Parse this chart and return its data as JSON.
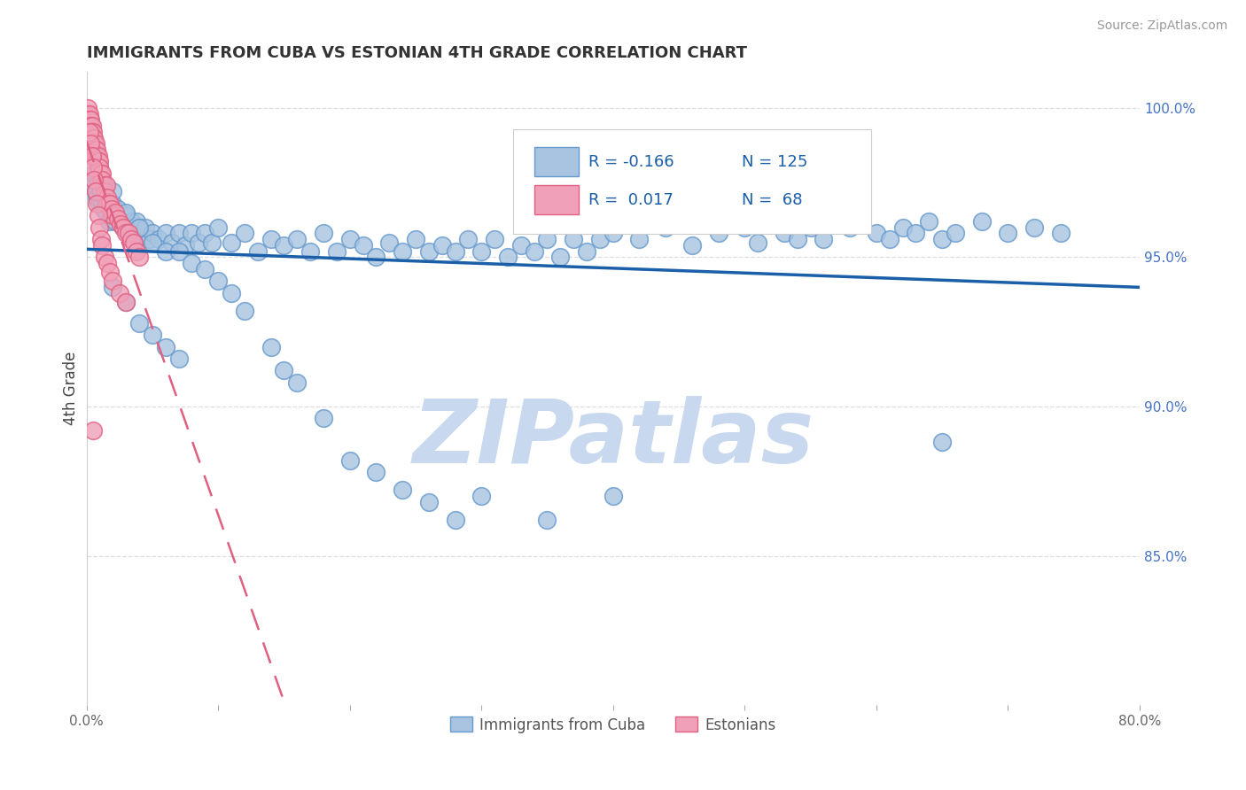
{
  "title": "IMMIGRANTS FROM CUBA VS ESTONIAN 4TH GRADE CORRELATION CHART",
  "source": "Source: ZipAtlas.com",
  "ylabel": "4th Grade",
  "xlim": [
    0.0,
    0.8
  ],
  "ylim": [
    0.8,
    1.012
  ],
  "xticks": [
    0.0,
    0.1,
    0.2,
    0.3,
    0.4,
    0.5,
    0.6,
    0.7,
    0.8
  ],
  "xticklabels": [
    "0.0%",
    "",
    "",
    "",
    "",
    "",
    "",
    "",
    "80.0%"
  ],
  "yticks_right": [
    0.85,
    0.9,
    0.95,
    1.0
  ],
  "yticklabels_right": [
    "85.0%",
    "90.0%",
    "95.0%",
    "100.0%"
  ],
  "grid_color": "#dedede",
  "blue_color": "#a8c4e0",
  "pink_color": "#f0a0b8",
  "blue_edge": "#6699cc",
  "pink_edge": "#e06080",
  "trendline_blue": "#1a5fa8",
  "trendline_pink": "#e06080",
  "legend_R_blue": "-0.166",
  "legend_N_blue": "125",
  "legend_R_pink": "0.017",
  "legend_N_pink": "68",
  "blue_x": [
    0.003,
    0.004,
    0.005,
    0.006,
    0.007,
    0.008,
    0.009,
    0.01,
    0.011,
    0.012,
    0.013,
    0.014,
    0.015,
    0.016,
    0.017,
    0.018,
    0.019,
    0.02,
    0.022,
    0.024,
    0.026,
    0.028,
    0.03,
    0.032,
    0.034,
    0.036,
    0.038,
    0.04,
    0.042,
    0.045,
    0.048,
    0.05,
    0.055,
    0.06,
    0.065,
    0.07,
    0.075,
    0.08,
    0.085,
    0.09,
    0.095,
    0.1,
    0.11,
    0.12,
    0.13,
    0.14,
    0.15,
    0.16,
    0.17,
    0.18,
    0.19,
    0.2,
    0.21,
    0.22,
    0.23,
    0.24,
    0.25,
    0.26,
    0.27,
    0.28,
    0.29,
    0.3,
    0.31,
    0.32,
    0.33,
    0.34,
    0.35,
    0.36,
    0.37,
    0.38,
    0.39,
    0.4,
    0.42,
    0.44,
    0.46,
    0.48,
    0.5,
    0.51,
    0.53,
    0.54,
    0.55,
    0.56,
    0.58,
    0.6,
    0.61,
    0.62,
    0.63,
    0.64,
    0.65,
    0.66,
    0.68,
    0.7,
    0.72,
    0.74,
    0.01,
    0.02,
    0.03,
    0.04,
    0.05,
    0.06,
    0.07,
    0.08,
    0.09,
    0.1,
    0.11,
    0.12,
    0.14,
    0.15,
    0.16,
    0.18,
    0.2,
    0.22,
    0.24,
    0.26,
    0.28,
    0.3,
    0.35,
    0.4,
    0.02,
    0.03,
    0.04,
    0.05,
    0.06,
    0.07,
    0.65
  ],
  "blue_y": [
    0.974,
    0.976,
    0.974,
    0.978,
    0.972,
    0.97,
    0.975,
    0.968,
    0.972,
    0.968,
    0.966,
    0.97,
    0.965,
    0.968,
    0.962,
    0.966,
    0.963,
    0.968,
    0.962,
    0.966,
    0.962,
    0.96,
    0.964,
    0.96,
    0.962,
    0.958,
    0.962,
    0.96,
    0.956,
    0.96,
    0.956,
    0.958,
    0.956,
    0.958,
    0.955,
    0.958,
    0.954,
    0.958,
    0.955,
    0.958,
    0.955,
    0.96,
    0.955,
    0.958,
    0.952,
    0.956,
    0.954,
    0.956,
    0.952,
    0.958,
    0.952,
    0.956,
    0.954,
    0.95,
    0.955,
    0.952,
    0.956,
    0.952,
    0.954,
    0.952,
    0.956,
    0.952,
    0.956,
    0.95,
    0.954,
    0.952,
    0.956,
    0.95,
    0.956,
    0.952,
    0.956,
    0.958,
    0.956,
    0.96,
    0.954,
    0.958,
    0.96,
    0.955,
    0.958,
    0.956,
    0.96,
    0.956,
    0.96,
    0.958,
    0.956,
    0.96,
    0.958,
    0.962,
    0.956,
    0.958,
    0.962,
    0.958,
    0.96,
    0.958,
    0.98,
    0.972,
    0.965,
    0.96,
    0.955,
    0.952,
    0.952,
    0.948,
    0.946,
    0.942,
    0.938,
    0.932,
    0.92,
    0.912,
    0.908,
    0.896,
    0.882,
    0.878,
    0.872,
    0.868,
    0.862,
    0.87,
    0.862,
    0.87,
    0.94,
    0.935,
    0.928,
    0.924,
    0.92,
    0.916,
    0.888
  ],
  "pink_x": [
    0.001,
    0.001,
    0.002,
    0.002,
    0.002,
    0.003,
    0.003,
    0.003,
    0.004,
    0.004,
    0.004,
    0.005,
    0.005,
    0.005,
    0.006,
    0.006,
    0.006,
    0.007,
    0.007,
    0.007,
    0.008,
    0.008,
    0.008,
    0.009,
    0.009,
    0.009,
    0.01,
    0.01,
    0.011,
    0.011,
    0.012,
    0.012,
    0.013,
    0.014,
    0.015,
    0.016,
    0.017,
    0.018,
    0.019,
    0.02,
    0.022,
    0.024,
    0.026,
    0.028,
    0.03,
    0.032,
    0.034,
    0.036,
    0.038,
    0.04,
    0.002,
    0.003,
    0.004,
    0.005,
    0.006,
    0.007,
    0.008,
    0.009,
    0.01,
    0.011,
    0.012,
    0.014,
    0.016,
    0.018,
    0.02,
    0.025,
    0.03,
    0.005
  ],
  "pink_y": [
    1.0,
    0.998,
    0.998,
    0.996,
    0.994,
    0.996,
    0.994,
    0.992,
    0.994,
    0.992,
    0.99,
    0.992,
    0.99,
    0.988,
    0.99,
    0.988,
    0.986,
    0.988,
    0.986,
    0.984,
    0.986,
    0.984,
    0.982,
    0.984,
    0.982,
    0.98,
    0.982,
    0.98,
    0.978,
    0.976,
    0.978,
    0.976,
    0.974,
    0.972,
    0.974,
    0.97,
    0.968,
    0.968,
    0.966,
    0.964,
    0.965,
    0.963,
    0.961,
    0.96,
    0.958,
    0.958,
    0.956,
    0.955,
    0.952,
    0.95,
    0.992,
    0.988,
    0.984,
    0.98,
    0.976,
    0.972,
    0.968,
    0.964,
    0.96,
    0.956,
    0.954,
    0.95,
    0.948,
    0.945,
    0.942,
    0.938,
    0.935,
    0.892
  ],
  "watermark_text": "ZIPatlas",
  "watermark_color": "#c8d8ee"
}
